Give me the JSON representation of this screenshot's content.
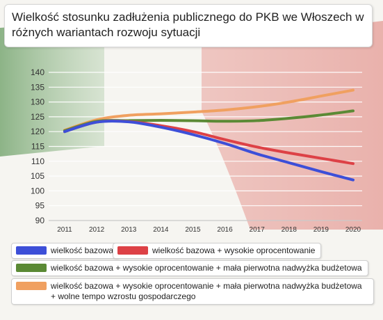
{
  "title": "Wielkość stosunku zadłużenia publicznego do PKB we Włoszech w różnych wariantach rozwoju sytuacji",
  "colors": {
    "blue": "#3d4fd8",
    "red": "#dd4146",
    "green": "#5b8a35",
    "orange": "#f0a060",
    "flag_green": "#8fb58a",
    "flag_red": "#e9a6a2"
  },
  "chart_data": {
    "type": "line",
    "title": "Wielkość stosunku zadłużenia publicznego do PKB we Włoszech w różnych wariantach rozwoju sytuacji",
    "xlabel": "",
    "ylabel": "",
    "x": [
      "2011",
      "2012",
      "2013",
      "2014",
      "2015",
      "2016",
      "2017",
      "2018",
      "2019",
      "2020"
    ],
    "ylim": [
      90,
      140
    ],
    "yticks": [
      "90",
      "95",
      "100",
      "105",
      "110",
      "115",
      "120",
      "125",
      "130",
      "135",
      "140"
    ],
    "grid": true,
    "legend_position": "bottom",
    "series": [
      {
        "name": "wielkość bazowa",
        "color": "#3d4fd8",
        "values": [
          120,
          123.2,
          123.3,
          121.5,
          119,
          116,
          112.5,
          109.5,
          106.5,
          103.7
        ]
      },
      {
        "name": "wielkość bazowa + wysokie oprocentowanie",
        "color": "#dd4146",
        "values": [
          120,
          123.2,
          123.4,
          122,
          120,
          117.3,
          114.8,
          112.8,
          111,
          109.2
        ]
      },
      {
        "name": "wielkość bazowa + wysokie oprocentowanie + mała pierwotna nadwyżka budżetowa",
        "color": "#5b8a35",
        "values": [
          120.3,
          123.5,
          123.7,
          123.8,
          123.7,
          123.5,
          123.7,
          124.5,
          125.6,
          127
        ]
      },
      {
        "name": "wielkość bazowa + wysokie oprocentowanie + mała pierwotna nadwyżka budżetowa + wolne tempo wzrostu gospodarczego",
        "color": "#f0a060",
        "values": [
          120.5,
          124,
          125.5,
          126,
          126.6,
          127.3,
          128.4,
          130,
          132,
          134
        ]
      }
    ]
  }
}
